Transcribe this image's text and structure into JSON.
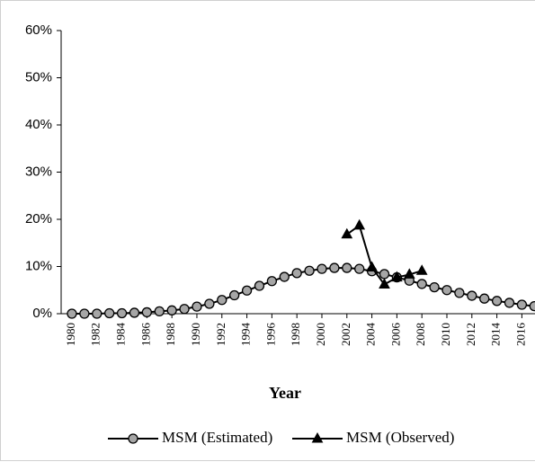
{
  "chart_data": {
    "type": "line",
    "x_label": "Year",
    "xlim": [
      1979.14,
      2017.05
    ],
    "xticks": [
      1980,
      1982,
      1984,
      1986,
      1988,
      1990,
      1992,
      1994,
      1996,
      1998,
      2000,
      2002,
      2004,
      2006,
      2008,
      2010,
      2012,
      2014,
      2016
    ],
    "ylim": [
      0,
      60
    ],
    "yticks": [
      {
        "value": 0,
        "label": "0%"
      },
      {
        "value": 10,
        "label": "10%"
      },
      {
        "value": 20,
        "label": "20%"
      },
      {
        "value": 30,
        "label": "30%"
      },
      {
        "value": 40,
        "label": "40%"
      },
      {
        "value": 50,
        "label": "50%"
      },
      {
        "value": 60,
        "label": "60%"
      }
    ],
    "grid": false,
    "legend": "bottom",
    "series": [
      {
        "name": "MSM (Estimated)",
        "color": "#a6a6a6",
        "marker": "circle",
        "x": [
          1980,
          1981,
          1982,
          1983,
          1984,
          1985,
          1986,
          1987,
          1988,
          1989,
          1990,
          1991,
          1992,
          1993,
          1994,
          1995,
          1996,
          1997,
          1998,
          1999,
          2000,
          2001,
          2002,
          2003,
          2004,
          2005,
          2006,
          2007,
          2008,
          2009,
          2010,
          2011,
          2012,
          2013,
          2014,
          2015,
          2016,
          2017
        ],
        "values": [
          0,
          0,
          0,
          0.1,
          0.1,
          0.2,
          0.3,
          0.5,
          0.7,
          1.0,
          1.5,
          2.1,
          2.9,
          3.9,
          4.9,
          5.9,
          6.9,
          7.8,
          8.6,
          9.1,
          9.5,
          9.7,
          9.7,
          9.5,
          9.0,
          8.4,
          7.7,
          7.0,
          6.3,
          5.6,
          5.0,
          4.4,
          3.8,
          3.2,
          2.7,
          2.3,
          1.9,
          1.6
        ]
      },
      {
        "name": "MSM (Observed)",
        "color": "#000000",
        "marker": "triangle",
        "x": [
          2002,
          2003,
          2004,
          2005,
          2006,
          2007,
          2008
        ],
        "values": [
          16.8,
          18.7,
          9.8,
          6.2,
          7.7,
          8.3,
          9.1
        ]
      }
    ]
  }
}
